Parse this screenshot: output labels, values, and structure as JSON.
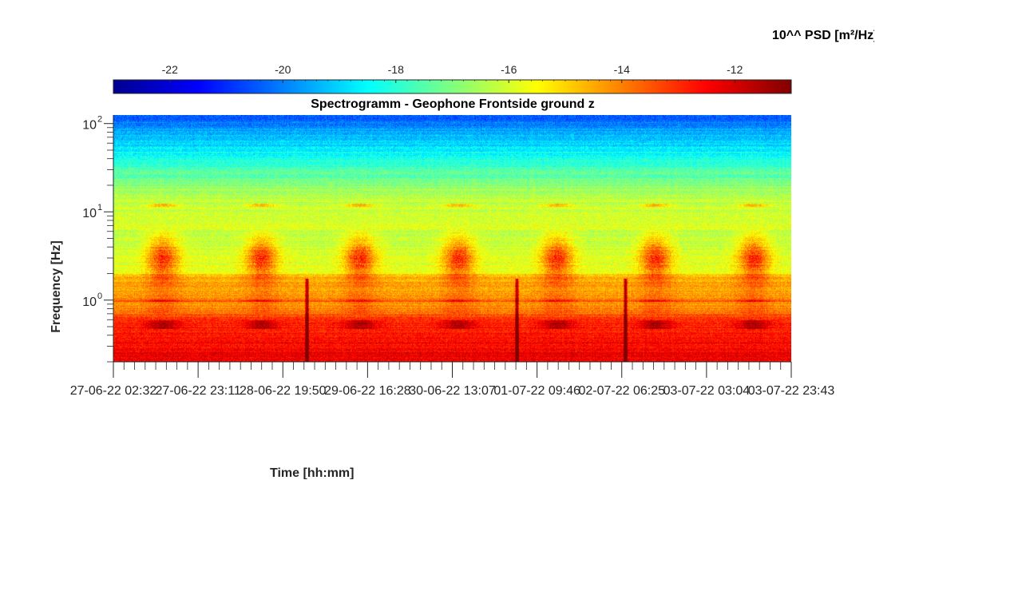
{
  "chart_data": {
    "type": "heatmap",
    "title": "Spectrogramm - Geophone Frontside ground z",
    "xlabel": "Time [hh:mm]",
    "ylabel": "Frequency [Hz]",
    "colorbar": {
      "label": "10^^ PSD [m²/Hz]",
      "colormap": "jet",
      "range": [
        -23,
        -11
      ],
      "ticks": [
        -22,
        -20,
        -18,
        -16,
        -14,
        -12
      ],
      "tick_labels": [
        "-22",
        "-20",
        "-18",
        "-16",
        "-14",
        "-12"
      ],
      "location": "top"
    },
    "x_axis": {
      "ticks": [
        "27-06-22 02:32",
        "27-06-22 23:11",
        "28-06-22 19:50",
        "29-06-22 16:28",
        "30-06-22 13:07",
        "01-07-22 09:46",
        "02-07-22 06:25",
        "03-07-22 03:04",
        "03-07-22 23:43"
      ],
      "range": [
        "27-06-22 02:32",
        "03-07-22 23:43"
      ]
    },
    "y_axis": {
      "scale": "log",
      "ticks": [
        1,
        10,
        100
      ],
      "tick_labels": [
        "10",
        "10",
        "10"
      ],
      "tick_exponents": [
        "0",
        "1",
        "2"
      ],
      "range": [
        0.2,
        125
      ]
    },
    "features": {
      "daily_activity_band_hz": [
        1.5,
        6
      ],
      "daily_peak_level": -13.5,
      "tonal_line_hz": 1.0,
      "tonal_line_level": -13.5,
      "line_12hz_level": -15.0,
      "low_freq_floor_level": -13.0,
      "high_freq_floor_level": -20.5,
      "transients": [
        "28-06-22 21:00",
        "01-07-22 07:30",
        "02-07-22 06:20"
      ]
    }
  },
  "colors": {
    "axis": "#262626",
    "jet_low": "#00008f",
    "jet_high": "#800000"
  }
}
